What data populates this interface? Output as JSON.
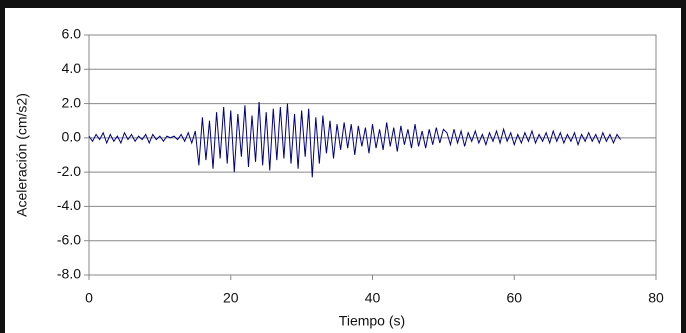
{
  "chart_data": {
    "type": "line",
    "xlabel": "Tiempo (s)",
    "ylabel": "Aceleración (cm/s2)",
    "color": "#000080",
    "xlim": [
      0,
      80
    ],
    "xticks": [
      0,
      20,
      40,
      60,
      80
    ],
    "ylim": [
      -8,
      6
    ],
    "yticks": [
      {
        "value": -8,
        "label": "-8.0"
      },
      {
        "value": -6,
        "label": "-6.0"
      },
      {
        "value": -4,
        "label": "-4.0"
      },
      {
        "value": -2,
        "label": "-2.0"
      },
      {
        "value": 0,
        "label": "0.0"
      },
      {
        "value": 2,
        "label": "2.0"
      },
      {
        "value": 4,
        "label": "4.0"
      },
      {
        "value": 6,
        "label": "6.0"
      }
    ],
    "grid": true,
    "x": [
      0,
      0.5,
      1,
      1.5,
      2,
      2.5,
      3,
      3.5,
      4,
      4.5,
      5,
      5.5,
      6,
      6.5,
      7,
      7.5,
      8,
      8.5,
      9,
      9.5,
      10,
      10.5,
      11,
      11.5,
      12,
      12.5,
      13,
      13.5,
      14,
      14.5,
      15,
      15.5,
      16,
      16.5,
      17,
      17.5,
      18,
      18.5,
      19,
      19.5,
      20,
      20.5,
      21,
      21.5,
      22,
      22.5,
      23,
      23.5,
      24,
      24.5,
      25,
      25.5,
      26,
      26.5,
      27,
      27.5,
      28,
      28.5,
      29,
      29.5,
      30,
      30.5,
      31,
      31.5,
      32,
      32.5,
      33,
      33.5,
      34,
      34.5,
      35,
      35.5,
      36,
      36.5,
      37,
      37.5,
      38,
      38.5,
      39,
      39.5,
      40,
      40.5,
      41,
      41.5,
      42,
      42.5,
      43,
      43.5,
      44,
      44.5,
      45,
      45.5,
      46,
      46.5,
      47,
      47.5,
      48,
      48.5,
      49,
      49.5,
      50,
      50.5,
      51,
      51.5,
      52,
      52.5,
      53,
      53.5,
      54,
      54.5,
      55,
      55.5,
      56,
      56.5,
      57,
      57.5,
      58,
      58.5,
      59,
      59.5,
      60,
      60.5,
      61,
      61.5,
      62,
      62.5,
      63,
      63.5,
      64,
      64.5,
      65,
      65.5,
      66,
      66.5,
      67,
      67.5,
      68,
      68.5,
      69,
      69.5,
      70,
      70.5,
      71,
      71.5,
      72,
      72.5,
      73,
      73.5,
      74,
      74.5,
      75
    ],
    "values": [
      0.1,
      -0.2,
      0.2,
      -0.1,
      0.3,
      -0.3,
      0.2,
      -0.2,
      0.1,
      -0.3,
      0.3,
      -0.1,
      0.2,
      -0.2,
      0.1,
      -0.1,
      0.2,
      -0.3,
      0.2,
      -0.1,
      0.1,
      -0.2,
      0.1,
      0,
      0.1,
      -0.1,
      0.2,
      -0.2,
      0.3,
      -0.3,
      0.4,
      -1.6,
      1.2,
      -1.3,
      1.0,
      -1.8,
      1.5,
      -1.2,
      1.8,
      -1.5,
      1.6,
      -2.0,
      1.4,
      -1.1,
      1.9,
      -1.7,
      1.3,
      -1.4,
      2.1,
      -1.6,
      1.5,
      -1.9,
      1.7,
      -1.3,
      1.8,
      -1.2,
      2.0,
      -1.5,
      1.4,
      -1.8,
      1.6,
      -1.1,
      1.7,
      -2.3,
      1.2,
      -1.5,
      1.3,
      -0.9,
      1.0,
      -1.2,
      0.8,
      -0.7,
      0.9,
      -0.6,
      0.8,
      -1.0,
      0.7,
      -0.5,
      0.6,
      -0.9,
      0.8,
      -0.6,
      0.5,
      -0.7,
      0.9,
      -0.5,
      0.6,
      -0.8,
      0.7,
      -0.4,
      0.5,
      -0.6,
      0.8,
      -0.5,
      0.4,
      -0.6,
      0.5,
      -0.4,
      0.6,
      -0.3,
      0.5,
      0.3,
      -0.4,
      0.5,
      -0.3,
      0.4,
      -0.5,
      0.3,
      -0.2,
      0.4,
      -0.3,
      0.2,
      -0.4,
      0.3,
      -0.2,
      0.4,
      -0.3,
      0.5,
      -0.2,
      0.3,
      -0.4,
      0.2,
      -0.3,
      0.3,
      -0.2,
      0.4,
      -0.3,
      0.2,
      -0.2,
      0.3,
      -0.3,
      0.4,
      -0.2,
      0.3,
      -0.3,
      0.2,
      -0.2,
      0.3,
      -0.4,
      0.2,
      -0.2,
      0.3,
      -0.2,
      0.2,
      -0.3,
      0.3,
      -0.2,
      0.2,
      -0.3,
      0.2,
      -0.1
    ]
  }
}
